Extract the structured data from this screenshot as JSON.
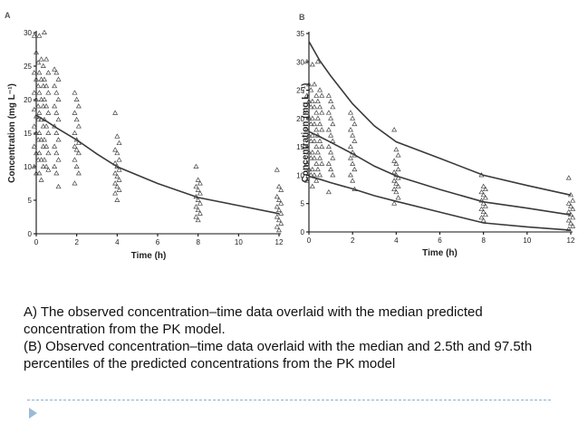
{
  "chart_data": [
    {
      "panel": "A",
      "type": "scatter",
      "xlabel": "Time (h)",
      "ylabel": "Concentration (mg L⁻¹)",
      "xlim": [
        0,
        12
      ],
      "ylim": [
        0,
        30
      ],
      "xticks": [
        0,
        2,
        4,
        6,
        8,
        10,
        12
      ],
      "yticks": [
        0,
        5,
        10,
        15,
        20,
        25,
        30
      ],
      "observed": [
        {
          "x": 0,
          "y": [
            29.5,
            27,
            25.5,
            24,
            23,
            22,
            21,
            20,
            19,
            18.5,
            17.5,
            17,
            16,
            15,
            14,
            13,
            12,
            11,
            10,
            9
          ]
        },
        {
          "x": 0.25,
          "y": [
            29.5,
            26,
            25,
            24,
            23,
            22,
            21,
            20,
            19,
            18,
            17,
            16,
            15,
            14,
            13,
            12,
            11,
            10,
            9,
            8
          ]
        },
        {
          "x": 0.5,
          "y": [
            30,
            26,
            24,
            23,
            22,
            21,
            20,
            19,
            18,
            17,
            16,
            15,
            14,
            13,
            12,
            11,
            10,
            9.5
          ]
        },
        {
          "x": 1,
          "y": [
            24.5,
            24,
            23,
            22,
            21,
            20,
            19,
            18,
            17,
            16,
            15,
            14,
            13,
            12,
            11,
            10,
            9,
            7
          ]
        },
        {
          "x": 2,
          "y": [
            21,
            20,
            19,
            18,
            17,
            16,
            15,
            14,
            13.5,
            13,
            12.5,
            12,
            11,
            10,
            9,
            7.5
          ]
        },
        {
          "x": 4,
          "y": [
            18,
            14.5,
            13.5,
            12.5,
            12,
            11,
            10.5,
            10,
            9.5,
            9,
            8.5,
            8,
            7.5,
            7,
            6.5,
            6,
            5
          ]
        },
        {
          "x": 8,
          "y": [
            10,
            8,
            7.5,
            7,
            6.5,
            6,
            5.5,
            5,
            4.5,
            4,
            3.5,
            3,
            2.5,
            2
          ]
        },
        {
          "x": 12,
          "y": [
            9.5,
            7,
            6.5,
            5.5,
            5,
            4.5,
            4,
            3.5,
            3,
            2.5,
            2,
            1.5,
            1,
            0.5
          ]
        }
      ],
      "series": [
        {
          "name": "median predicted",
          "x": [
            0,
            0.25,
            0.5,
            1,
            2,
            3,
            4,
            6,
            8,
            10,
            12
          ],
          "y": [
            17.7,
            17.2,
            16.8,
            15.8,
            14.0,
            11.9,
            10.0,
            7.5,
            5.4,
            4.2,
            3.0
          ]
        }
      ]
    },
    {
      "panel": "B",
      "type": "scatter",
      "xlabel": "Time (h)",
      "ylabel": "Concentration (mg L⁻¹)",
      "xlim": [
        0,
        12
      ],
      "ylim": [
        0,
        35
      ],
      "xticks": [
        0,
        2,
        4,
        6,
        8,
        10,
        12
      ],
      "yticks": [
        0,
        5,
        10,
        15,
        20,
        25,
        30,
        35
      ],
      "observed": [
        {
          "x": 0,
          "y": [
            30,
            26,
            25,
            24,
            23,
            22,
            21,
            20,
            19,
            18,
            17,
            16,
            15,
            14,
            13,
            12,
            11,
            10,
            9
          ]
        },
        {
          "x": 0.25,
          "y": [
            29.5,
            26,
            24,
            23,
            22,
            21,
            20,
            19,
            18,
            17,
            16,
            15,
            14,
            13,
            12,
            11,
            10,
            9,
            8
          ]
        },
        {
          "x": 0.5,
          "y": [
            30,
            25,
            24,
            23,
            22,
            21,
            20,
            19,
            18,
            17,
            16,
            15,
            14,
            13,
            12,
            11,
            10
          ]
        },
        {
          "x": 1,
          "y": [
            24,
            23,
            22,
            21,
            20,
            19,
            18,
            17,
            16,
            15,
            14,
            13,
            12,
            11,
            10,
            7
          ]
        },
        {
          "x": 2,
          "y": [
            21,
            20,
            19,
            18,
            17,
            16,
            15,
            14,
            13.5,
            13,
            12,
            11,
            10,
            9,
            7.5
          ]
        },
        {
          "x": 4,
          "y": [
            18,
            14.5,
            13.5,
            12.5,
            12,
            11,
            10.5,
            10,
            9.5,
            9,
            8.5,
            8,
            7.5,
            7,
            6,
            5
          ]
        },
        {
          "x": 8,
          "y": [
            10,
            8,
            7.5,
            7,
            6.5,
            6,
            5.5,
            5,
            4.5,
            4,
            3.5,
            3,
            2.5,
            2
          ]
        },
        {
          "x": 12,
          "y": [
            9.5,
            6.5,
            5.5,
            5,
            4.5,
            4,
            3.5,
            3,
            2.5,
            2,
            1.5,
            1,
            0.5
          ]
        }
      ],
      "series": [
        {
          "name": "97.5th percentile",
          "x": [
            0,
            0.5,
            1,
            2,
            3,
            4,
            6,
            8,
            10,
            12
          ],
          "y": [
            33.6,
            30.2,
            27.5,
            22.6,
            18.7,
            15.9,
            13.0,
            10.0,
            8.2,
            6.5
          ]
        },
        {
          "name": "median",
          "x": [
            0,
            0.5,
            1,
            2,
            3,
            4,
            6,
            8,
            10,
            12
          ],
          "y": [
            17.7,
            16.8,
            15.8,
            13.8,
            11.6,
            9.9,
            7.5,
            5.3,
            4.2,
            3.0
          ]
        },
        {
          "name": "2.5th percentile",
          "x": [
            0,
            0.5,
            1,
            2,
            3,
            4,
            6,
            8,
            10,
            12
          ],
          "y": [
            9.8,
            9.3,
            8.7,
            7.6,
            6.4,
            5.4,
            3.5,
            1.6,
            0.9,
            0.3
          ]
        }
      ]
    }
  ],
  "caption": {
    "line1": "A) The observed concentration–time data overlaid with the median predicted concentration from the PK model.",
    "line2": "(B) Observed concentration–time data overlaid with the median and 2.5th and 97.5th percentiles of the predicted concentrations from the PK model"
  },
  "theme": {
    "observed_color": "#444444",
    "curve_color": "#3a3a3a",
    "rule_color": "#8ab0d0",
    "bullet_color": "#9cbad6"
  }
}
